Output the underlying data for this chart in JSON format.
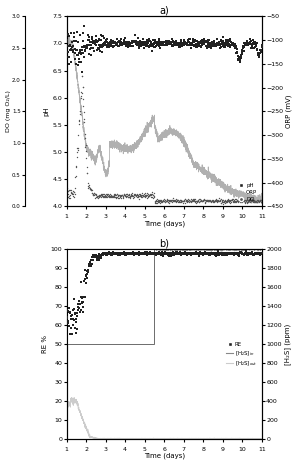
{
  "title_a": "a)",
  "title_b": "b)",
  "time_range": [
    1,
    11
  ],
  "ax_a": {
    "do_ylabel": "DO (mg O₂/L)",
    "ph_ylabel": "pH",
    "orp_ylabel": "ORP (mV)",
    "xlabel": "Time (days)",
    "do_ylim": [
      0.0,
      3.0
    ],
    "do_yticks": [
      0.0,
      0.5,
      1.0,
      1.5,
      2.0,
      2.5,
      3.0
    ],
    "ph_ylim": [
      4.0,
      7.5
    ],
    "ph_yticks": [
      4.0,
      4.5,
      5.0,
      5.5,
      6.0,
      6.5,
      7.0,
      7.5
    ],
    "orp_ylim": [
      -450,
      -50
    ],
    "orp_yticks": [
      -450,
      -400,
      -350,
      -300,
      -250,
      -200,
      -150,
      -100,
      -50
    ]
  },
  "ax_b": {
    "re_ylabel": "RE %",
    "h2s_ylabel": "[H₂S] (ppm)",
    "xlabel": "Time (days)",
    "re_ylim": [
      0,
      100
    ],
    "re_yticks": [
      0,
      10,
      20,
      30,
      40,
      50,
      60,
      70,
      80,
      90,
      100
    ],
    "h2s_ylim": [
      0,
      2000
    ],
    "h2s_yticks": [
      0,
      200,
      400,
      600,
      800,
      1000,
      1200,
      1400,
      1600,
      1800,
      2000
    ]
  },
  "colors": {
    "ph": "#222222",
    "orp": "#b0b0b0",
    "do": "#555555",
    "re": "#222222",
    "h2s_in": "#888888",
    "h2s_out": "#cccccc"
  },
  "xticks": [
    1,
    2,
    3,
    4,
    5,
    6,
    7,
    8,
    9,
    10,
    11
  ]
}
